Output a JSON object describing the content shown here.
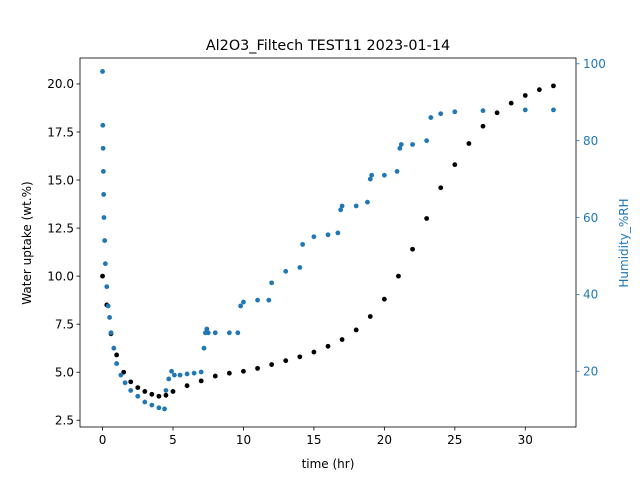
{
  "chart_data": {
    "type": "scatter",
    "title": "Al2O3_Filtech TEST11 2023-01-14",
    "xlabel": "time (hr)",
    "ylabel": "Water uptake (wt.%)",
    "y2label": "Humidity_%RH",
    "xlim": [
      -1.6,
      33.6
    ],
    "ylim": [
      2.15,
      21.35
    ],
    "y2lim": [
      5.5,
      101.5
    ],
    "xticks": [
      0,
      5,
      10,
      15,
      20,
      25,
      30
    ],
    "xtick_labels": [
      "0",
      "5",
      "10",
      "15",
      "20",
      "25",
      "30"
    ],
    "yticks": [
      2.5,
      5.0,
      7.5,
      10.0,
      12.5,
      15.0,
      17.5,
      20.0
    ],
    "ytick_labels": [
      "2.5",
      "5.0",
      "7.5",
      "10.0",
      "12.5",
      "15.0",
      "17.5",
      "20.0"
    ],
    "y2ticks": [
      20,
      40,
      60,
      80,
      100
    ],
    "y2tick_labels": [
      "20",
      "40",
      "60",
      "80",
      "100"
    ],
    "grid": false,
    "colors": {
      "water_uptake": "#000000",
      "humidity": "#1f77b4",
      "axes": "#000000"
    },
    "series": [
      {
        "axis": "left",
        "color": "#000000",
        "x": [
          0,
          0.3,
          0.6,
          1,
          1.5,
          2,
          2.5,
          3,
          3.5,
          4,
          4.5,
          5,
          6,
          7,
          8,
          9,
          10,
          11,
          12,
          13,
          14,
          15,
          16,
          17,
          18,
          19,
          20,
          21,
          22,
          23,
          24,
          25,
          26,
          27,
          28,
          29,
          30,
          31,
          32
        ],
        "y": [
          10.0,
          8.5,
          7.0,
          5.9,
          5.0,
          4.5,
          4.2,
          4.0,
          3.85,
          3.75,
          3.8,
          4.0,
          4.3,
          4.55,
          4.8,
          4.95,
          5.05,
          5.2,
          5.4,
          5.6,
          5.8,
          6.05,
          6.35,
          6.7,
          7.2,
          7.9,
          8.8,
          10.0,
          11.4,
          13.0,
          14.6,
          15.8,
          16.9,
          17.8,
          18.5,
          19.0,
          19.4,
          19.7,
          19.9
        ]
      },
      {
        "axis": "right",
        "color": "#1f77b4",
        "x": [
          0,
          0.02,
          0.04,
          0.06,
          0.08,
          0.1,
          0.15,
          0.2,
          0.3,
          0.4,
          0.5,
          0.6,
          0.8,
          1,
          1.3,
          1.6,
          2,
          2.5,
          3,
          3.5,
          4,
          4.4,
          4.5,
          4.7,
          4.9,
          5.1,
          5.5,
          6,
          6.5,
          7,
          7.2,
          7.3,
          7.4,
          7.5,
          8,
          9,
          9.6,
          9.8,
          10,
          11,
          11.8,
          12,
          13,
          14,
          14.2,
          15,
          16,
          16.7,
          16.9,
          17,
          18,
          18.8,
          19,
          19.1,
          20,
          20.9,
          21.1,
          21.2,
          22,
          23,
          23.3,
          24,
          25,
          27,
          30,
          32
        ],
        "y": [
          98,
          84,
          78,
          72,
          66,
          60,
          54,
          48,
          42,
          37,
          34,
          30,
          26,
          22,
          19,
          17,
          15,
          13.5,
          12,
          11.2,
          10.5,
          10.2,
          15,
          18,
          20,
          19,
          19,
          19.3,
          19.5,
          19.8,
          26,
          30,
          31,
          30,
          30,
          30,
          30,
          37,
          38,
          38.5,
          38.5,
          43,
          46,
          47,
          53,
          55,
          55.5,
          56,
          62,
          63,
          63,
          64,
          70,
          71,
          71,
          72,
          78,
          79,
          79,
          80,
          86,
          87,
          87.5,
          87.8,
          88,
          88
        ]
      }
    ]
  }
}
